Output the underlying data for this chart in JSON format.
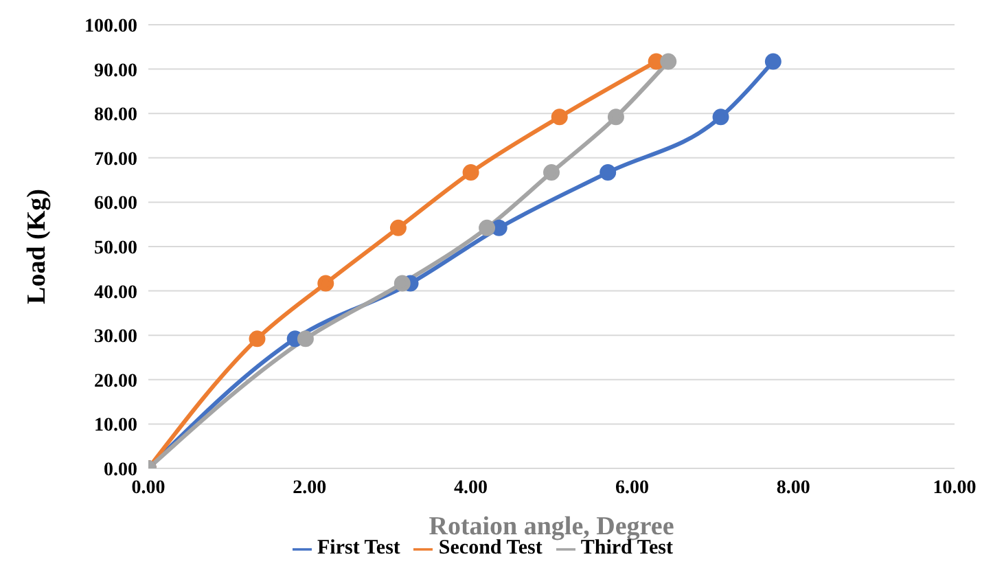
{
  "chart_data": {
    "type": "line",
    "xlabel": "Rotaion angle, Degree",
    "ylabel": "Load (Kg)",
    "series": [
      {
        "name": "First Test",
        "color": "#4472c4",
        "x": [
          0,
          1.82,
          3.25,
          4.35,
          5.7,
          7.1,
          7.75
        ],
        "values": [
          0,
          29.2,
          41.7,
          54.2,
          66.7,
          79.2,
          91.7
        ]
      },
      {
        "name": "Second Test",
        "color": "#ed7d31",
        "x": [
          0,
          1.35,
          2.2,
          3.1,
          4.0,
          5.1,
          6.3
        ],
        "values": [
          0,
          29.2,
          41.7,
          54.2,
          66.7,
          79.2,
          91.7
        ]
      },
      {
        "name": "Third Test",
        "color": "#a5a5a5",
        "x": [
          0,
          1.95,
          3.15,
          4.2,
          5.0,
          5.8,
          6.45
        ],
        "values": [
          0,
          29.2,
          41.7,
          54.2,
          66.7,
          79.2,
          91.7
        ]
      }
    ],
    "xlim": [
      0,
      10
    ],
    "xticks": [
      {
        "value": 0,
        "label": "0.00"
      },
      {
        "value": 2,
        "label": "2.00"
      },
      {
        "value": 4,
        "label": "4.00"
      },
      {
        "value": 6,
        "label": "6.00"
      },
      {
        "value": 8,
        "label": "8.00"
      },
      {
        "value": 10,
        "label": "10.00"
      }
    ],
    "ylim": [
      0,
      100
    ],
    "yticks": [
      {
        "value": 0,
        "label": "0.00"
      },
      {
        "value": 10,
        "label": "10.00"
      },
      {
        "value": 20,
        "label": "20.00"
      },
      {
        "value": 30,
        "label": "30.00"
      },
      {
        "value": 40,
        "label": "40.00"
      },
      {
        "value": 50,
        "label": "50.00"
      },
      {
        "value": 60,
        "label": "60.00"
      },
      {
        "value": 70,
        "label": "70.00"
      },
      {
        "value": 80,
        "label": "80.00"
      },
      {
        "value": 90,
        "label": "90.00"
      },
      {
        "value": 100,
        "label": "100.00"
      }
    ],
    "grid": "y",
    "legend": "bottom",
    "marker": "circle",
    "line_style": "solid"
  }
}
